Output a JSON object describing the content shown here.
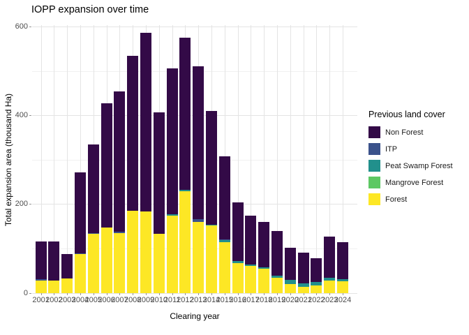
{
  "chart_data": {
    "type": "bar",
    "stacked": true,
    "title": "IOPP expansion over time",
    "xlabel": "Clearing year",
    "ylabel": "Total expansion area (thousand Ha)",
    "units": "thousand Ha",
    "ylim": [
      0,
      604
    ],
    "yticks": [
      0,
      200,
      400,
      600
    ],
    "yminor": [
      100,
      300,
      500
    ],
    "grid": true,
    "legend_position": "right",
    "legend_title": "Previous land cover",
    "legend_order_top_to_bottom": [
      "Non Forest",
      "ITP",
      "Peat Swamp Forest",
      "Mangrove Forest",
      "Forest"
    ],
    "categories": [
      "2001",
      "2002",
      "2003",
      "2004",
      "2005",
      "2006",
      "2007",
      "2008",
      "2009",
      "2010",
      "2011",
      "2012",
      "2013",
      "2014",
      "2015",
      "2016",
      "2017",
      "2018",
      "2019",
      "2020",
      "2021",
      "2022",
      "2023",
      "2024"
    ],
    "series": [
      {
        "name": "Forest",
        "color": "#fde725",
        "values": [
          29,
          28,
          33,
          88,
          133,
          148,
          135,
          186,
          184,
          134,
          175,
          229,
          161,
          152,
          114,
          67,
          61,
          55,
          34,
          21,
          14,
          18,
          29,
          26
        ]
      },
      {
        "name": "Mangrove Forest",
        "color": "#5dc863",
        "values": [
          0,
          0,
          0,
          0,
          0,
          0,
          0,
          0,
          0,
          0,
          0,
          0,
          0,
          0,
          0,
          0,
          0,
          0,
          0,
          0,
          0,
          0,
          0,
          0
        ]
      },
      {
        "name": "Peat Swamp Forest",
        "color": "#21908c",
        "values": [
          0,
          0,
          0,
          0,
          0,
          0,
          0,
          0,
          0,
          0,
          3,
          3,
          0,
          2,
          5,
          6,
          4,
          3,
          6,
          9,
          8,
          7,
          5,
          5
        ]
      },
      {
        "name": "ITP",
        "color": "#3b528b",
        "values": [
          3,
          0,
          0,
          1,
          3,
          0,
          3,
          0,
          0,
          0,
          0,
          0,
          6,
          0,
          2,
          0,
          0,
          0,
          0,
          0,
          0,
          0,
          0,
          0
        ]
      },
      {
        "name": "Non Forest",
        "color": "#330a47",
        "values": [
          84,
          88,
          55,
          183,
          199,
          279,
          317,
          348,
          402,
          274,
          328,
          343,
          344,
          257,
          187,
          132,
          110,
          103,
          100,
          72,
          69,
          54,
          94,
          84
        ]
      }
    ],
    "totals": [
      116,
      116,
      88,
      272,
      335,
      427,
      455,
      534,
      586,
      408,
      506,
      575,
      511,
      411,
      308,
      205,
      175,
      161,
      140,
      102,
      91,
      79,
      128,
      115
    ],
    "colors": {
      "major_grid": "#e4e4e4",
      "minor_grid": "#f1f1f1",
      "tick": "#949494",
      "tick_label": "#4d4d4d",
      "text": "#000000",
      "background": "#ffffff"
    }
  }
}
